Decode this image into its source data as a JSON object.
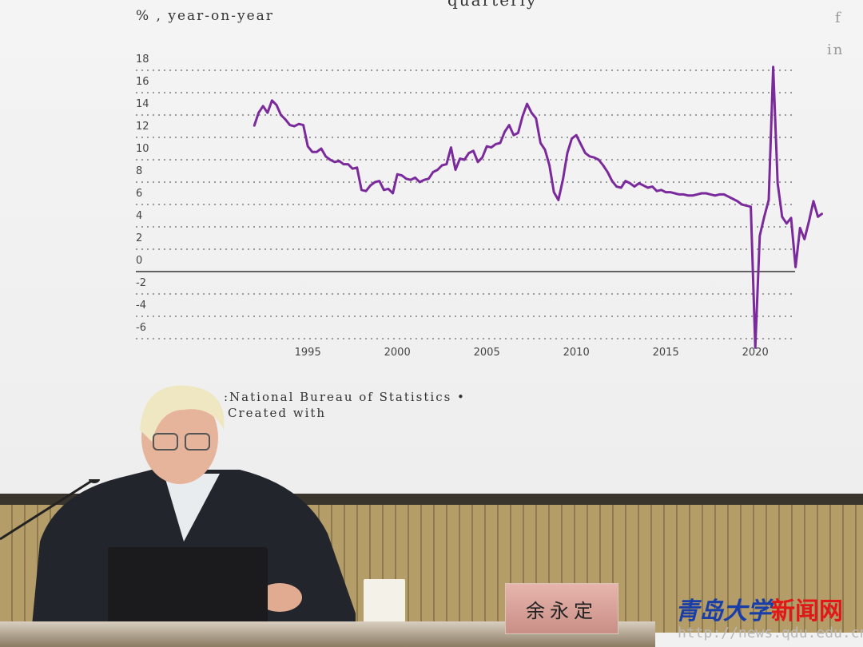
{
  "slide": {
    "title_fragment": "quarterly",
    "y_unit": "% , year-on-year",
    "right_fragments": [
      "f",
      "in"
    ],
    "source": ":National Bureau of Statistics •",
    "created_with": "Created with"
  },
  "chart_data": {
    "type": "line",
    "title": "quarterly",
    "ylabel": "% , year-on-year",
    "ylim": [
      -6,
      18
    ],
    "yticks": [
      18,
      16,
      14,
      12,
      10,
      8,
      6,
      4,
      2,
      0,
      -2,
      -4,
      -6
    ],
    "xticks": [
      1995,
      2000,
      2005,
      2010,
      2015,
      2020
    ],
    "grid": "horizontal dotted",
    "line_color": "#7b2a9c",
    "start": "1992Q1",
    "frequency": "quarterly",
    "values": [
      13.0,
      14.2,
      14.8,
      14.2,
      15.3,
      14.9,
      14.0,
      13.6,
      13.1,
      13.0,
      13.2,
      13.1,
      11.2,
      10.7,
      10.7,
      11.0,
      10.3,
      10.0,
      9.8,
      9.9,
      9.6,
      9.6,
      9.2,
      9.3,
      7.3,
      7.2,
      7.7,
      8.0,
      8.1,
      7.3,
      7.4,
      7.0,
      8.7,
      8.6,
      8.3,
      8.2,
      8.4,
      8.0,
      8.2,
      8.3,
      8.9,
      9.1,
      9.5,
      9.6,
      11.1,
      9.1,
      10.1,
      10.0,
      10.6,
      10.8,
      9.8,
      10.2,
      11.2,
      11.1,
      11.4,
      11.5,
      12.5,
      13.1,
      12.2,
      12.4,
      13.9,
      15.0,
      14.2,
      13.7,
      11.5,
      10.9,
      9.5,
      7.1,
      6.4,
      8.2,
      10.6,
      11.9,
      12.2,
      11.4,
      10.6,
      10.3,
      10.2,
      10.0,
      9.5,
      8.9,
      8.1,
      7.6,
      7.5,
      8.1,
      7.9,
      7.6,
      7.9,
      7.7,
      7.5,
      7.6,
      7.2,
      7.3,
      7.1,
      7.1,
      7.0,
      6.9,
      6.9,
      6.8,
      6.8,
      6.9,
      7.0,
      7.0,
      6.9,
      6.8,
      6.9,
      6.9,
      6.7,
      6.5,
      6.3,
      6.0,
      5.9,
      5.8,
      -6.8,
      3.2,
      4.9,
      6.4,
      18.3,
      7.9,
      4.9,
      4.3,
      4.8,
      0.4,
      3.9,
      2.9,
      4.5,
      6.3,
      4.9,
      5.2
    ]
  },
  "nameplate": "余永定",
  "watermark": {
    "logo": "青岛大学",
    "site": "新闻网",
    "url": "http://news.qdu.edu.cn"
  }
}
